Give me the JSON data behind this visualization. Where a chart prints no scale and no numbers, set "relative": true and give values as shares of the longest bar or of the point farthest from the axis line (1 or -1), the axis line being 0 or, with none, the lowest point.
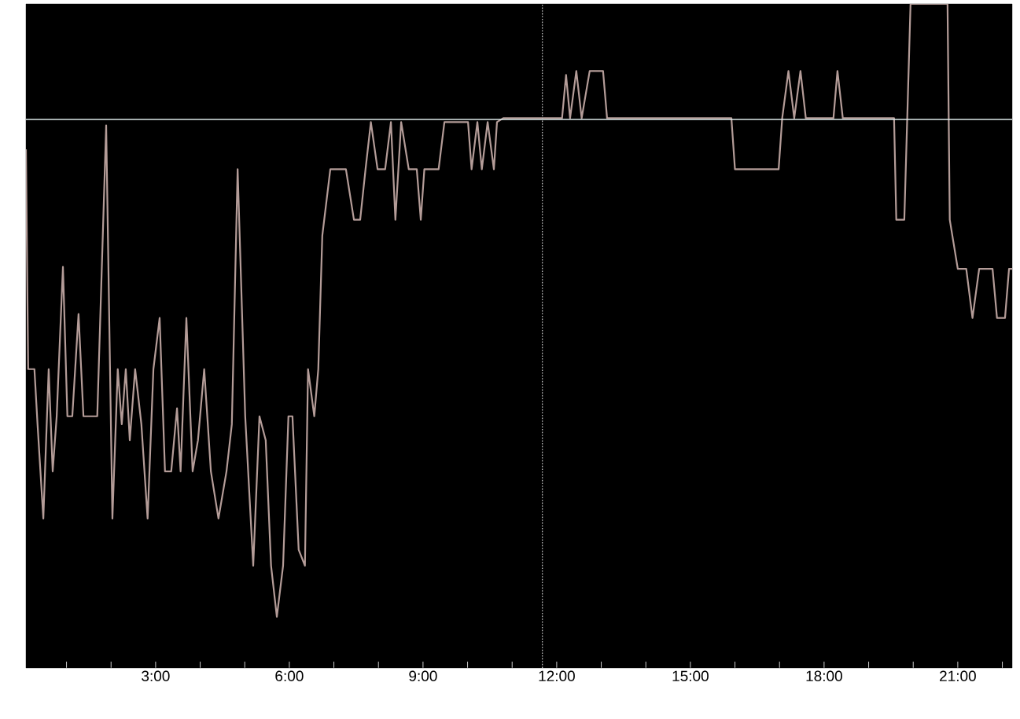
{
  "chart_data": {
    "type": "line",
    "relative": true,
    "tick_labels": "x",
    "xlim": [
      0.09,
      22.22
    ],
    "xticks": [
      {
        "value": 1,
        "label": null
      },
      {
        "value": 2,
        "label": null
      },
      {
        "value": 3,
        "label": "3:00"
      },
      {
        "value": 4,
        "label": null
      },
      {
        "value": 5,
        "label": null
      },
      {
        "value": 6,
        "label": "6:00"
      },
      {
        "value": 7,
        "label": null
      },
      {
        "value": 8,
        "label": null
      },
      {
        "value": 9,
        "label": "9:00"
      },
      {
        "value": 10,
        "label": null
      },
      {
        "value": 11,
        "label": null
      },
      {
        "value": 12,
        "label": "12:00"
      },
      {
        "value": 13,
        "label": null
      },
      {
        "value": 14,
        "label": null
      },
      {
        "value": 15,
        "label": "15:00"
      },
      {
        "value": 16,
        "label": null
      },
      {
        "value": 17,
        "label": null
      },
      {
        "value": 18,
        "label": "18:00"
      },
      {
        "value": 19,
        "label": null
      },
      {
        "value": 20,
        "label": null
      },
      {
        "value": 21,
        "label": "21:00"
      },
      {
        "value": 22,
        "label": null
      }
    ],
    "ref_lines": [
      {
        "axis": "y",
        "value": 0.826,
        "color": "#dce8e8"
      },
      {
        "axis": "x",
        "value": 11.68,
        "color": "#b8b8b8",
        "line_style": "dotted"
      }
    ],
    "x": [
      0.09,
      0.14,
      0.28,
      0.35,
      0.48,
      0.6,
      0.69,
      0.78,
      0.92,
      1.02,
      1.13,
      1.27,
      1.38,
      1.59,
      1.69,
      1.89,
      2.03,
      2.15,
      2.24,
      2.33,
      2.42,
      2.54,
      2.68,
      2.82,
      2.95,
      3.09,
      3.21,
      3.35,
      3.48,
      3.56,
      3.69,
      3.83,
      3.95,
      4.09,
      4.24,
      4.41,
      4.59,
      4.71,
      4.84,
      5.01,
      5.19,
      5.33,
      5.47,
      5.59,
      5.72,
      5.86,
      5.98,
      6.07,
      6.21,
      6.35,
      6.42,
      6.56,
      6.65,
      6.74,
      6.92,
      7.09,
      7.27,
      7.45,
      7.59,
      7.71,
      7.83,
      7.98,
      8.15,
      8.28,
      8.38,
      8.51,
      8.68,
      8.86,
      8.95,
      9.03,
      9.18,
      9.35,
      9.48,
      9.65,
      10.01,
      10.09,
      10.22,
      10.32,
      10.45,
      10.59,
      10.66,
      10.8,
      12.12,
      12.21,
      12.3,
      12.44,
      12.56,
      12.74,
      13.04,
      13.13,
      15.92,
      16.0,
      16.98,
      17.06,
      17.2,
      17.33,
      17.47,
      17.59,
      18.21,
      18.3,
      18.42,
      18.56,
      19.57,
      19.62,
      19.8,
      19.94,
      20.77,
      20.82,
      21.0,
      21.19,
      21.33,
      21.48,
      21.78,
      21.88,
      22.06,
      22.15,
      22.22
    ],
    "series": [
      {
        "color": "#b49c98",
        "values": [
          0.781,
          0.45,
          0.45,
          0.367,
          0.225,
          0.45,
          0.296,
          0.379,
          0.604,
          0.379,
          0.379,
          0.533,
          0.379,
          0.379,
          0.379,
          0.817,
          0.225,
          0.45,
          0.367,
          0.45,
          0.343,
          0.45,
          0.367,
          0.225,
          0.45,
          0.527,
          0.296,
          0.296,
          0.391,
          0.296,
          0.527,
          0.296,
          0.343,
          0.45,
          0.296,
          0.225,
          0.296,
          0.367,
          0.751,
          0.379,
          0.154,
          0.379,
          0.343,
          0.154,
          0.077,
          0.154,
          0.379,
          0.379,
          0.178,
          0.154,
          0.45,
          0.379,
          0.45,
          0.651,
          0.751,
          0.751,
          0.751,
          0.675,
          0.675,
          0.751,
          0.822,
          0.751,
          0.751,
          0.822,
          0.675,
          0.822,
          0.751,
          0.751,
          0.675,
          0.751,
          0.751,
          0.751,
          0.822,
          0.822,
          0.822,
          0.751,
          0.822,
          0.751,
          0.822,
          0.751,
          0.822,
          0.828,
          0.828,
          0.893,
          0.828,
          0.899,
          0.828,
          0.899,
          0.899,
          0.828,
          0.828,
          0.751,
          0.751,
          0.828,
          0.899,
          0.828,
          0.899,
          0.828,
          0.828,
          0.899,
          0.828,
          0.828,
          0.828,
          0.675,
          0.675,
          1.0,
          1.0,
          0.675,
          0.601,
          0.601,
          0.527,
          0.601,
          0.601,
          0.527,
          0.527,
          0.601,
          0.601
        ]
      }
    ]
  }
}
